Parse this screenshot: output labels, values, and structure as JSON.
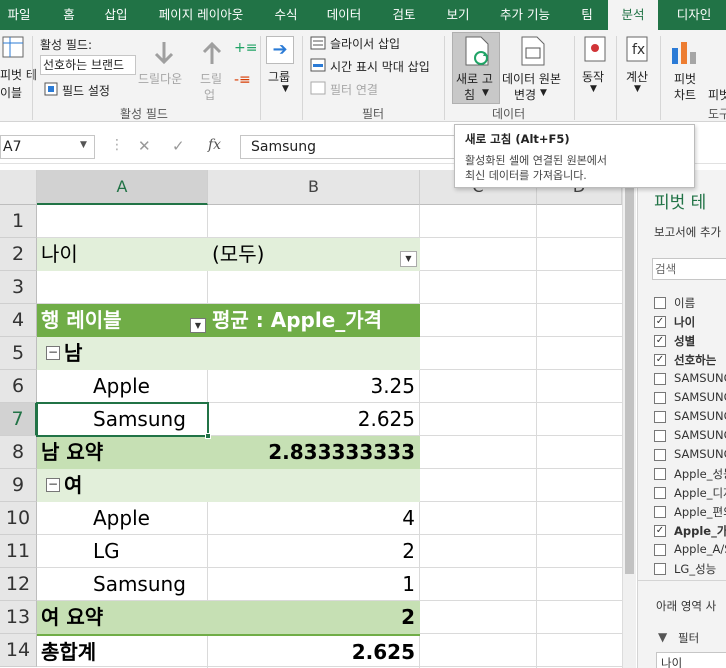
{
  "tabs": [
    "파일",
    "홈",
    "삽입",
    "페이지 레이아웃",
    "수식",
    "데이터",
    "검토",
    "보기",
    "추가 기능",
    "팀",
    "분석",
    "디자인"
  ],
  "ribbon": {
    "pivot_label_line1": "피벗 테",
    "pivot_label_line2": "이블",
    "active_field_label": "활성 필드:",
    "active_field_value": "선호하는 브랜드",
    "field_settings": "필드 설정",
    "drill_down": "드릴다운",
    "drill_up_1": "드릴",
    "drill_up_2": "업",
    "active_field_group": "활성 필드",
    "group_label": "그룹",
    "insert_slicer": "슬라이서 삽입",
    "insert_timeline": "시간 표시 막대 삽입",
    "filter_connections": "필터 연결",
    "filter_group": "필터",
    "refresh_1": "새로 고",
    "refresh_2": "침",
    "change_source_1": "데이터 원본",
    "change_source_2": "변경",
    "data_group": "데이터",
    "actions": "동작",
    "calculations": "계산",
    "pivotchart_1": "피벗",
    "pivotchart_2": "차트",
    "recommended_1": "피벗",
    "tools_group": "도구"
  },
  "tooltip": {
    "title": "새로 고침 (Alt+F5)",
    "line1": "활성화된 셀에 연결된 원본에서",
    "line2": "최신 데이터를 가져옵니다."
  },
  "formula_bar": {
    "name_box": "A7",
    "fx": "fx",
    "content": "Samsung"
  },
  "columns": [
    "A",
    "B",
    "C",
    "D"
  ],
  "rows": [
    "1",
    "2",
    "3",
    "4",
    "5",
    "6",
    "7",
    "8",
    "9",
    "10",
    "11",
    "12",
    "13",
    "14"
  ],
  "cells": {
    "r2a": "나이",
    "r2b": "(모두)",
    "r4a": "행 레이블",
    "r4b": "평균 : Apple_가격",
    "r5a": "남",
    "r6a": "Apple",
    "r6b": "3.25",
    "r7a": "Samsung",
    "r7b": "2.625",
    "r8a": "남 요약",
    "r8b": "2.833333333",
    "r9a": "여",
    "r10a": "Apple",
    "r10b": "4",
    "r11a": "LG",
    "r11b": "2",
    "r12a": "Samsung",
    "r12b": "1",
    "r13a": "여 요약",
    "r13b": "2",
    "r14a": "총합계",
    "r14b": "2.625"
  },
  "panel": {
    "title": "피벗 테",
    "subtitle": "보고서에 추가",
    "search_placeholder": "검색",
    "fields": [
      {
        "name": "이름",
        "checked": false,
        "bold": false
      },
      {
        "name": "나이",
        "checked": true,
        "bold": true
      },
      {
        "name": "성별",
        "checked": true,
        "bold": true
      },
      {
        "name": "선호하는",
        "checked": true,
        "bold": true
      },
      {
        "name": "SAMSUNG",
        "checked": false,
        "bold": false
      },
      {
        "name": "SAMSUNG",
        "checked": false,
        "bold": false
      },
      {
        "name": "SAMSUNG",
        "checked": false,
        "bold": false
      },
      {
        "name": "SAMSUNG",
        "checked": false,
        "bold": false
      },
      {
        "name": "SAMSUNG",
        "checked": false,
        "bold": false
      },
      {
        "name": "Apple_성능",
        "checked": false,
        "bold": false
      },
      {
        "name": "Apple_디자",
        "checked": false,
        "bold": false
      },
      {
        "name": "Apple_편의",
        "checked": false,
        "bold": false
      },
      {
        "name": "Apple_가격",
        "checked": true,
        "bold": true
      },
      {
        "name": "Apple_A/S",
        "checked": false,
        "bold": false
      },
      {
        "name": "LG_성능",
        "checked": false,
        "bold": false
      }
    ],
    "areas_label": "아래 영역 사",
    "filter_label": "필터",
    "filter_item": "나이"
  },
  "colors": {
    "accent": "#217346",
    "pivot_header": "#70ad47",
    "subtotal": "#c6e0b4",
    "light_row": "#e2efda"
  }
}
